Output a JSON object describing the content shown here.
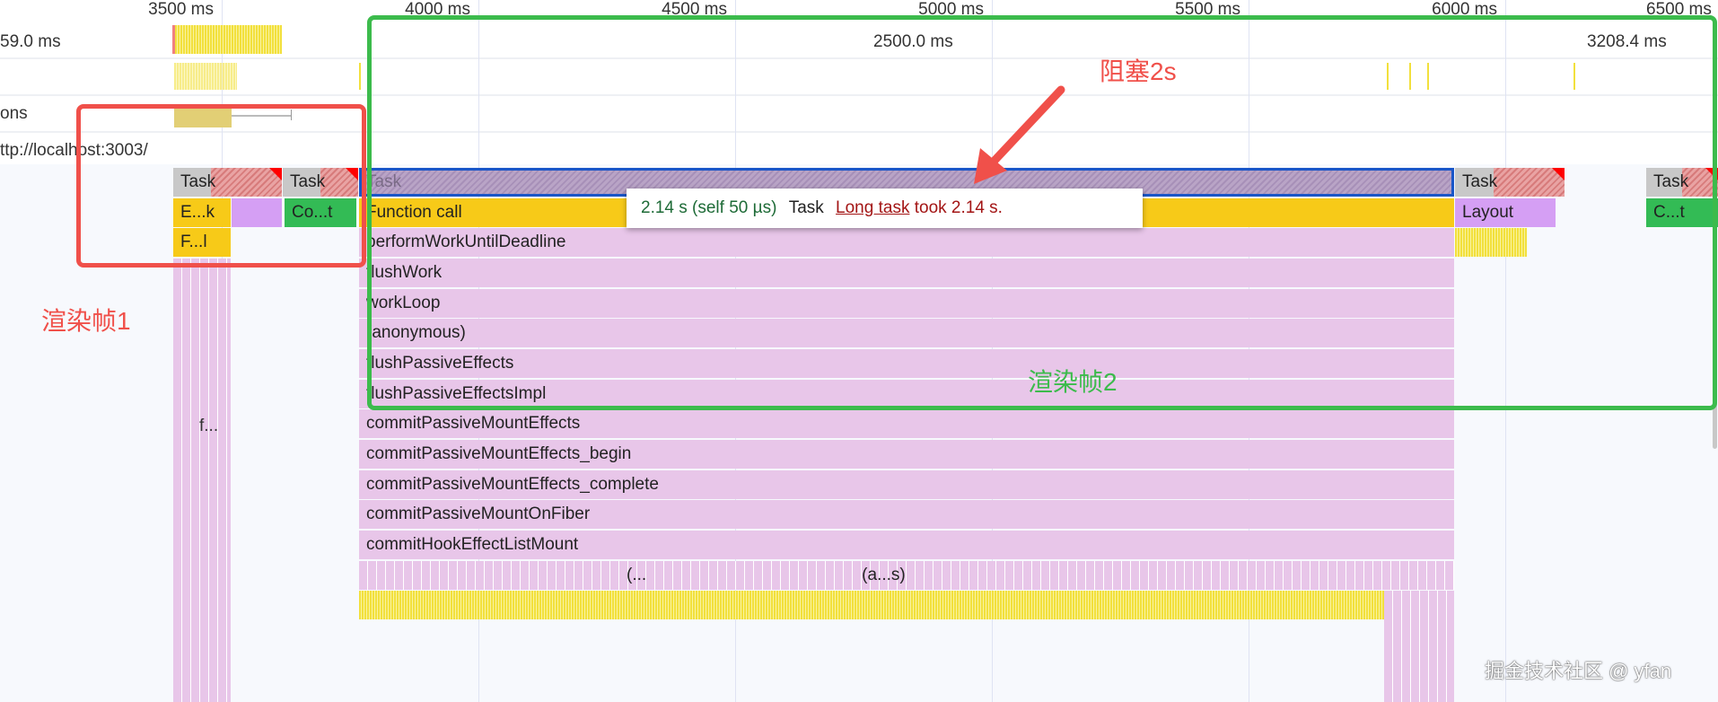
{
  "ruler": {
    "ticks": [
      "3500 ms",
      "4000 ms",
      "4500 ms",
      "5000 ms",
      "5500 ms",
      "6000 ms",
      "6500 ms"
    ]
  },
  "tracks": {
    "frames_start": "59.0 ms",
    "frames_mid": "2500.0 ms",
    "frames_end": "3208.4 ms",
    "interactions_label": "ons",
    "main_label": "ttp://localhost:3003/"
  },
  "flame": {
    "task": "Task",
    "left": {
      "row2a": "E...k",
      "row2b": "Co...t",
      "row3": "F...l",
      "row7": "f..."
    },
    "main_rows": [
      "Function call",
      "performWorkUntilDeadline",
      "flushWork",
      "workLoop",
      "(anonymous)",
      "flushPassiveEffects",
      "flushPassiveEffectsImpl",
      "commitPassiveMountEffects",
      "commitPassiveMountEffects_begin",
      "commitPassiveMountEffects_complete",
      "commitPassiveMountOnFiber",
      "commitHookEffectListMount"
    ],
    "trunc1": "(...",
    "trunc2": "(a...s)",
    "layout": "Layout",
    "right_green": "C...t"
  },
  "tooltip": {
    "duration": "2.14 s (self 50 µs)",
    "name": "Task",
    "link": "Long task",
    "suffix": "took 2.14 s."
  },
  "annotations": {
    "frame1": "渲染帧1",
    "frame2": "渲染帧2",
    "blocked": "阻塞2s",
    "watermark": "掘金技术社区 @ yfan"
  },
  "colors": {
    "frame1_box": "#f0504a",
    "frame2_box": "#3cbb4c",
    "selection": "#1a56c8",
    "tooltip_time": "#1e6b37",
    "tooltip_link": "#a31515"
  }
}
